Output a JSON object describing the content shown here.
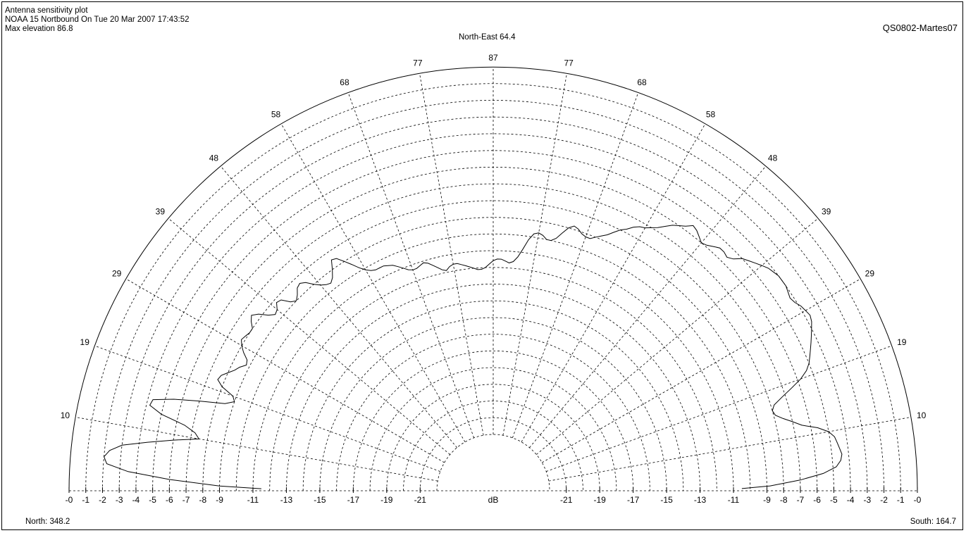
{
  "header": {
    "line1": "Antenna sensitivity plot",
    "line2": "NOAA 15 Nortbound On Tue 20 Mar 2007 17:43:52",
    "line3": "Max elevation 86.8",
    "top_label": "North-East 64.4",
    "station": "QS0802-Martes07"
  },
  "footer": {
    "left": "North: 348.2",
    "right": "South: 164.7"
  },
  "chart_data": {
    "type": "polar-line",
    "title": "Antenna sensitivity plot",
    "radial_unit": "dB",
    "radial_ticks_left": [
      "-0",
      "-1",
      "-2",
      "-3",
      "-4",
      "-5",
      "-6",
      "-7",
      "-8",
      "-9",
      "-11",
      "-13",
      "-15",
      "-17",
      "-19",
      "-21"
    ],
    "radial_ticks_right": [
      "-21",
      "-19",
      "-17",
      "-15",
      "-13",
      "-11",
      "-9",
      "-8",
      "-7",
      "-6",
      "-5",
      "-4",
      "-3",
      "-2",
      "-1",
      "-0"
    ],
    "angular_ticks_left": [
      "10",
      "19",
      "29",
      "39",
      "48",
      "58",
      "68",
      "77"
    ],
    "angular_ticks_right": [
      "77",
      "68",
      "58",
      "48",
      "39",
      "29",
      "19",
      "10"
    ],
    "angular_tick_top": "87",
    "grid": true,
    "series": [
      {
        "points": [
          [
            0.5,
            -11.5
          ],
          [
            1,
            -9
          ],
          [
            2,
            -6
          ],
          [
            3,
            -3.5
          ],
          [
            4,
            -2.2
          ],
          [
            5,
            -2
          ],
          [
            6,
            -2.3
          ],
          [
            7,
            -3
          ],
          [
            8,
            -4.5
          ],
          [
            9,
            -6
          ],
          [
            10,
            -7.5
          ],
          [
            11,
            -7.2
          ],
          [
            12,
            -6.5
          ],
          [
            13,
            -5
          ],
          [
            14,
            -4.2
          ],
          [
            15,
            -4.3
          ],
          [
            16,
            -5.5
          ],
          [
            17,
            -7
          ],
          [
            18,
            -8.5
          ],
          [
            19,
            -9
          ],
          [
            20,
            -8.8
          ],
          [
            21,
            -8
          ],
          [
            22,
            -7.6
          ],
          [
            23,
            -7.7
          ],
          [
            24,
            -8
          ],
          [
            25,
            -8.3
          ],
          [
            26,
            -8.5
          ],
          [
            27,
            -8.8
          ],
          [
            28,
            -8.7
          ],
          [
            29,
            -8.3
          ],
          [
            30,
            -8
          ],
          [
            31,
            -7.8
          ],
          [
            32,
            -7.9
          ],
          [
            33,
            -8
          ],
          [
            34,
            -8
          ],
          [
            35,
            -7.7
          ],
          [
            36,
            -7.5
          ],
          [
            37,
            -7.8
          ],
          [
            38,
            -8.3
          ],
          [
            39,
            -8.6
          ],
          [
            40,
            -8.5
          ],
          [
            41,
            -8.2
          ],
          [
            42,
            -8.3
          ],
          [
            43,
            -8.8
          ],
          [
            44,
            -9
          ],
          [
            45,
            -8.8
          ],
          [
            46,
            -8.5
          ],
          [
            47,
            -8.4
          ],
          [
            48,
            -8.6
          ],
          [
            49,
            -9
          ],
          [
            50,
            -9.3
          ],
          [
            51,
            -9.5
          ],
          [
            52,
            -9.6
          ],
          [
            53,
            -9.4
          ],
          [
            54,
            -9
          ],
          [
            55,
            -8.5
          ],
          [
            56,
            -8.6
          ],
          [
            57,
            -9
          ],
          [
            58,
            -9.4
          ],
          [
            59,
            -9.8
          ],
          [
            60,
            -10.1
          ],
          [
            61,
            -10.3
          ],
          [
            62,
            -10.4
          ],
          [
            63,
            -10.4
          ],
          [
            64,
            -10.4
          ],
          [
            65,
            -10.5
          ],
          [
            66,
            -10.6
          ],
          [
            67,
            -10.8
          ],
          [
            68,
            -11
          ],
          [
            69,
            -11.2
          ],
          [
            70,
            -11.3
          ],
          [
            71,
            -11.3
          ],
          [
            72,
            -11.2
          ],
          [
            73,
            -11.1
          ],
          [
            74,
            -11.2
          ],
          [
            75,
            -11.4
          ],
          [
            76,
            -11.6
          ],
          [
            77,
            -11.8
          ],
          [
            78,
            -11.9
          ],
          [
            79,
            -11.7
          ],
          [
            80,
            -11.6
          ],
          [
            81,
            -11.6
          ],
          [
            82,
            -11.7
          ],
          [
            83,
            -11.8
          ],
          [
            84,
            -11.9
          ],
          [
            85,
            -12
          ],
          [
            86,
            -12.1
          ],
          [
            87,
            -12.1
          ],
          [
            88,
            -12
          ],
          [
            89,
            -11.8
          ],
          [
            90,
            -11.6
          ],
          [
            91,
            -11.5
          ],
          [
            92,
            -11.5
          ],
          [
            93,
            -11.6
          ],
          [
            94,
            -11.7
          ],
          [
            95,
            -11.6
          ],
          [
            96,
            -11.3
          ],
          [
            97,
            -10.8
          ],
          [
            98,
            -10.2
          ],
          [
            99,
            -9.8
          ],
          [
            100,
            -9.7
          ],
          [
            101,
            -9.8
          ],
          [
            102,
            -10
          ],
          [
            103,
            -10
          ],
          [
            104,
            -9.8
          ],
          [
            105,
            -9.4
          ],
          [
            106,
            -9
          ],
          [
            107,
            -8.8
          ],
          [
            108,
            -8.9
          ],
          [
            109,
            -9.1
          ],
          [
            110,
            -9.2
          ],
          [
            111,
            -9.2
          ],
          [
            112,
            -9
          ],
          [
            113,
            -8.8
          ],
          [
            114,
            -8.6
          ],
          [
            115,
            -8.3
          ],
          [
            116,
            -8
          ],
          [
            117,
            -7.8
          ],
          [
            118,
            -7.5
          ],
          [
            119,
            -7.3
          ],
          [
            120,
            -7.2
          ],
          [
            121,
            -7
          ],
          [
            122,
            -6.8
          ],
          [
            123,
            -6.5
          ],
          [
            124,
            -6.2
          ],
          [
            125,
            -6
          ],
          [
            126,
            -5.8
          ],
          [
            127,
            -5.5
          ],
          [
            128,
            -5.6
          ],
          [
            129,
            -5.8
          ],
          [
            130,
            -6
          ],
          [
            131,
            -5.9
          ],
          [
            132,
            -5.7
          ],
          [
            133,
            -5.5
          ],
          [
            134,
            -5.5
          ],
          [
            135,
            -5.6
          ],
          [
            136,
            -5.4
          ],
          [
            137,
            -5
          ],
          [
            138,
            -4.8
          ],
          [
            139,
            -4.6
          ],
          [
            140,
            -4.4
          ],
          [
            141,
            -4.2
          ],
          [
            142,
            -4.1
          ],
          [
            143,
            -4
          ],
          [
            144,
            -4
          ],
          [
            145,
            -4
          ],
          [
            146,
            -4.1
          ],
          [
            147,
            -4.2
          ],
          [
            148,
            -4.1
          ],
          [
            149,
            -3.9
          ],
          [
            150,
            -3.8
          ],
          [
            151,
            -3.7
          ],
          [
            152,
            -3.8
          ],
          [
            153,
            -4
          ],
          [
            154,
            -4.2
          ],
          [
            155,
            -4.4
          ],
          [
            156,
            -4.6
          ],
          [
            157,
            -4.8
          ],
          [
            158,
            -5
          ],
          [
            159,
            -5.3
          ],
          [
            160,
            -5.8
          ],
          [
            161,
            -6.5
          ],
          [
            162,
            -7.2
          ],
          [
            163,
            -7.8
          ],
          [
            164,
            -8
          ],
          [
            165,
            -7.9
          ],
          [
            166,
            -7.5
          ],
          [
            167,
            -7
          ],
          [
            168,
            -6.5
          ],
          [
            169,
            -5.6
          ],
          [
            170,
            -5
          ],
          [
            171,
            -4.7
          ],
          [
            172,
            -4.6
          ],
          [
            173,
            -4.5
          ],
          [
            174,
            -4.4
          ],
          [
            175,
            -4.5
          ],
          [
            176,
            -4.8
          ],
          [
            177,
            -5.6
          ],
          [
            178,
            -7
          ],
          [
            179,
            -8.8
          ],
          [
            179.5,
            -10.5
          ]
        ]
      }
    ]
  }
}
